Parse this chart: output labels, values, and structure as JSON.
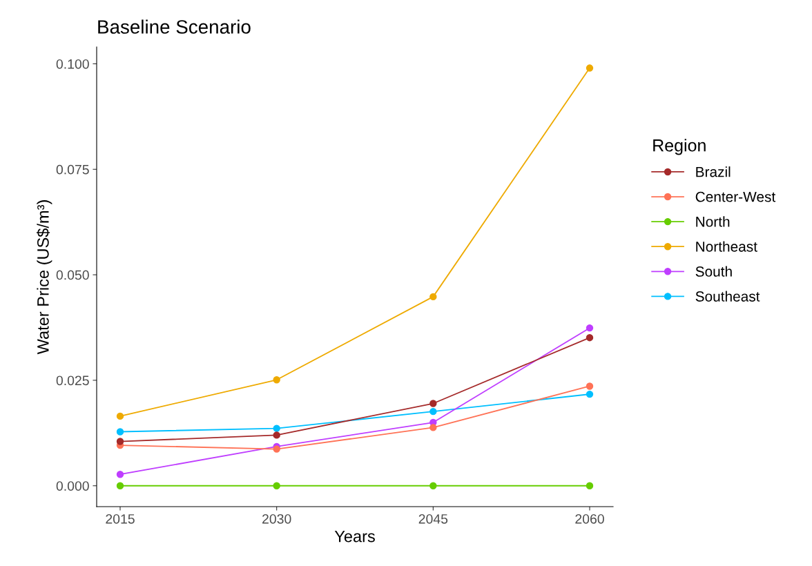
{
  "chart_data": {
    "type": "line",
    "title": "Baseline Scenario",
    "xlabel": "Years",
    "ylabel": "Water Price (US$/m³)",
    "legend_title": "Region",
    "legend": "right",
    "grid": false,
    "marker": "circle",
    "line_style": "solid",
    "x": [
      2015,
      2030,
      2045,
      2060
    ],
    "xlim": [
      2012.75,
      2062.25
    ],
    "xticks": [
      2015,
      2030,
      2045,
      2060
    ],
    "ylim": [
      -0.00495,
      0.104
    ],
    "yticks": [
      {
        "value": 0,
        "label": "0.000"
      },
      {
        "value": 0.025,
        "label": "0.025"
      },
      {
        "value": 0.05,
        "label": "0.050"
      },
      {
        "value": 0.075,
        "label": "0.075"
      },
      {
        "value": 0.1,
        "label": "0.100"
      }
    ],
    "series": [
      {
        "name": "Brazil",
        "color": "#a52a2a",
        "values": [
          0.0105,
          0.012,
          0.0195,
          0.0351
        ]
      },
      {
        "name": "Center-West",
        "color": "#ff7256",
        "values": [
          0.0096,
          0.0087,
          0.0138,
          0.0236
        ]
      },
      {
        "name": "North",
        "color": "#66cd00",
        "values": [
          0,
          0,
          0,
          0
        ]
      },
      {
        "name": "Northeast",
        "color": "#eeaa00",
        "values": [
          0.0165,
          0.0251,
          0.0448,
          0.099
        ]
      },
      {
        "name": "South",
        "color": "#bf3eff",
        "values": [
          0.0027,
          0.0093,
          0.015,
          0.0374
        ]
      },
      {
        "name": "Southeast",
        "color": "#00bfff",
        "values": [
          0.0128,
          0.0136,
          0.0176,
          0.0217
        ]
      }
    ]
  }
}
